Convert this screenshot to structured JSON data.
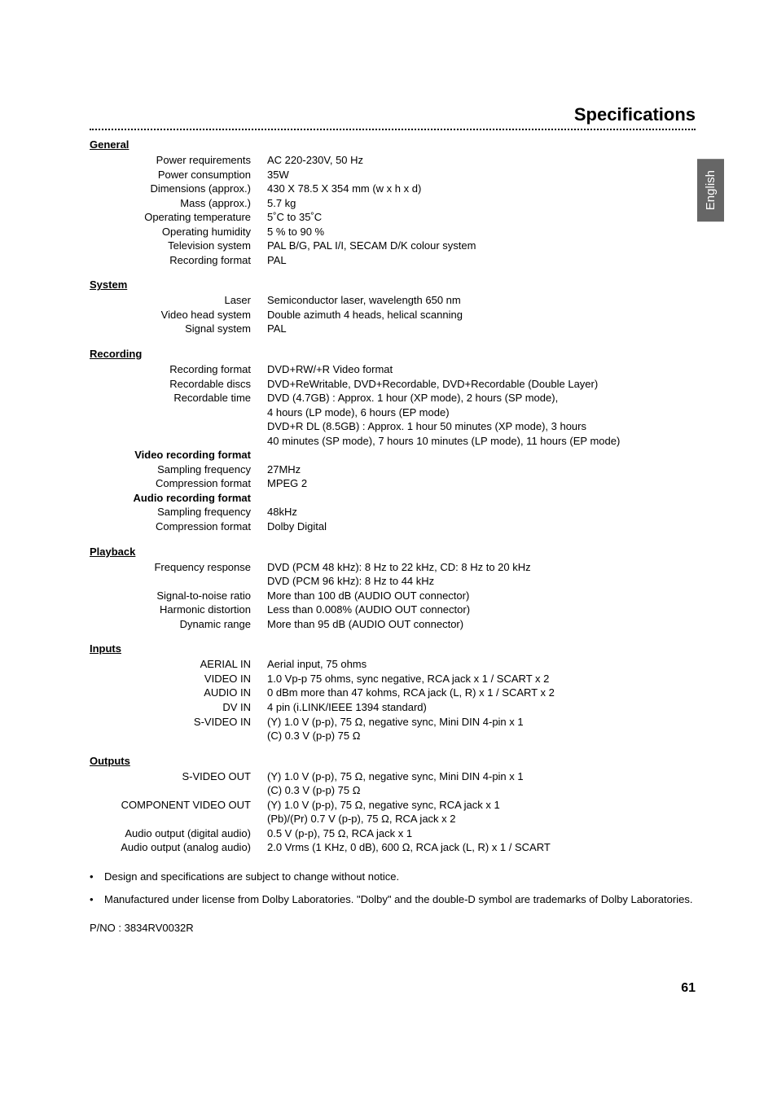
{
  "page_title": "Specifications",
  "lang_tab": "English",
  "page_number": "61",
  "part_number": "P/NO : 3834RV0032R",
  "notes": [
    "Design and specifications are subject to change without notice.",
    "Manufactured under license from Dolby Laboratories. \"Dolby\" and the double-D symbol are trademarks of Dolby Laboratories."
  ],
  "sections": {
    "general": {
      "title": "General",
      "rows": [
        {
          "label": "Power requirements",
          "value": "AC 220-230V, 50 Hz"
        },
        {
          "label": "Power consumption",
          "value": "35W"
        },
        {
          "label": "Dimensions (approx.)",
          "value": "430 X 78.5 X 354 mm (w x h x d)"
        },
        {
          "label": "Mass (approx.)",
          "value": "5.7 kg"
        },
        {
          "label": "Operating temperature",
          "value": "5˚C to 35˚C"
        },
        {
          "label": "Operating humidity",
          "value": "5 % to 90 %"
        },
        {
          "label": "Television system",
          "value": "PAL B/G, PAL I/I, SECAM D/K colour system"
        },
        {
          "label": "Recording format",
          "value": "PAL"
        }
      ]
    },
    "system": {
      "title": "System",
      "rows": [
        {
          "label": "Laser",
          "value": "Semiconductor laser, wavelength 650 nm"
        },
        {
          "label": "Video head system",
          "value": "Double azimuth 4 heads, helical scanning"
        },
        {
          "label": "Signal system",
          "value": "PAL"
        }
      ]
    },
    "recording": {
      "title": "Recording",
      "rows": [
        {
          "label": "Recording format",
          "value": "DVD+RW/+R Video format"
        },
        {
          "label": "Recordable discs",
          "value": "DVD+ReWritable, DVD+Recordable, DVD+Recordable (Double Layer)"
        },
        {
          "label": "Recordable time",
          "value": "DVD (4.7GB) : Approx. 1 hour (XP mode), 2 hours (SP mode),"
        },
        {
          "label": "",
          "value": "4 hours (LP mode), 6 hours (EP mode)"
        },
        {
          "label": "",
          "value": "DVD+R DL (8.5GB) : Approx. 1 hour 50 minutes (XP mode), 3 hours"
        },
        {
          "label": "",
          "value": "40 minutes (SP mode), 7 hours 10 minutes (LP mode), 11 hours (EP mode)"
        },
        {
          "label": "Video recording format",
          "value": "",
          "bold": true
        },
        {
          "label": "Sampling frequency",
          "value": "27MHz"
        },
        {
          "label": "Compression format",
          "value": "MPEG 2"
        },
        {
          "label": "Audio recording format",
          "value": "",
          "bold": true
        },
        {
          "label": "Sampling frequency",
          "value": "48kHz"
        },
        {
          "label": "Compression format",
          "value": "Dolby Digital"
        }
      ]
    },
    "playback": {
      "title": "Playback",
      "rows": [
        {
          "label": "Frequency response",
          "value": "DVD (PCM 48 kHz): 8 Hz to 22 kHz, CD: 8 Hz to 20 kHz"
        },
        {
          "label": "",
          "value": "DVD (PCM 96 kHz): 8 Hz to 44 kHz"
        },
        {
          "label": "Signal-to-noise ratio",
          "value": "More than 100 dB (AUDIO OUT connector)"
        },
        {
          "label": "Harmonic distortion",
          "value": "Less than 0.008% (AUDIO OUT connector)"
        },
        {
          "label": "Dynamic range",
          "value": "More than 95 dB (AUDIO OUT connector)"
        }
      ]
    },
    "inputs": {
      "title": "Inputs",
      "rows": [
        {
          "label": "AERIAL IN",
          "value": "Aerial input, 75 ohms"
        },
        {
          "label": "VIDEO IN",
          "value": "1.0 Vp-p 75 ohms, sync negative, RCA jack x 1 / SCART x 2"
        },
        {
          "label": "AUDIO IN",
          "value": "0 dBm more than 47 kohms, RCA jack (L, R) x 1 / SCART x 2"
        },
        {
          "label": "DV IN",
          "value": "4 pin (i.LINK/IEEE 1394 standard)"
        },
        {
          "label": "S-VIDEO IN",
          "value": "(Y) 1.0 V (p-p), 75 Ω, negative sync, Mini DIN 4-pin x 1"
        },
        {
          "label": "",
          "value": "(C) 0.3 V (p-p) 75 Ω"
        }
      ]
    },
    "outputs": {
      "title": "Outputs",
      "rows": [
        {
          "label": "S-VIDEO OUT",
          "value": "(Y) 1.0 V (p-p), 75 Ω, negative sync, Mini DIN 4-pin x 1"
        },
        {
          "label": "",
          "value": "(C) 0.3 V (p-p) 75 Ω"
        },
        {
          "label": "COMPONENT VIDEO OUT",
          "value": "(Y) 1.0 V (p-p), 75 Ω, negative sync, RCA jack x 1"
        },
        {
          "label": "",
          "value": "(Pb)/(Pr) 0.7 V (p-p), 75 Ω, RCA jack x 2"
        },
        {
          "label": "Audio output (digital audio)",
          "value": "0.5 V (p-p), 75 Ω, RCA jack x 1"
        },
        {
          "label": "Audio output (analog audio)",
          "value": "2.0 Vrms (1 KHz, 0 dB), 600 Ω, RCA jack (L, R) x 1 / SCART"
        }
      ]
    }
  }
}
